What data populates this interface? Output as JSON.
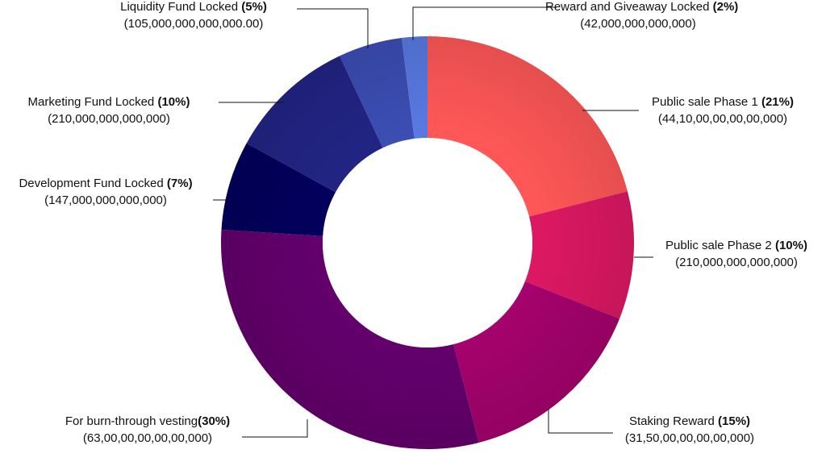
{
  "chart_data": {
    "type": "pie",
    "variant": "donut",
    "title": "",
    "slices": [
      {
        "name": "Public sale Phase 1",
        "percent_label": "(21%)",
        "amount": "(44,10,00,00,00,00,000)",
        "value": 21,
        "color": "#ff5757"
      },
      {
        "name": "Public sale Phase 2",
        "percent_label": "(10%)",
        "amount": "(210,000,000,000,000)",
        "value": 10,
        "color": "#dc1863"
      },
      {
        "name": "Staking Reward",
        "percent_label": "(15%)",
        "amount": "(31,50,00,00,00,00,000)",
        "value": 15,
        "color": "#a4026c"
      },
      {
        "name": "For burn-through vesting",
        "percent_label": "(30%)",
        "amount": "(63,00,00,00,00,00,000)",
        "value": 30,
        "color": "#63006c"
      },
      {
        "name": "Development Fund Locked",
        "percent_label": "(7%)",
        "amount": "(147,000,000,000,000)",
        "value": 7,
        "color": "#02005b"
      },
      {
        "name": "Marketing Fund Locked",
        "percent_label": "(10%)",
        "amount": "(210,000,000,000,000)",
        "value": 10,
        "color": "#222484"
      },
      {
        "name": "Liquidity Fund Locked",
        "percent_label": "(5%)",
        "amount": "(105,000,000,000,000.00)",
        "value": 5,
        "color": "#3c4db3"
      },
      {
        "name": "Reward and Giveaway Locked",
        "percent_label": "(2%)",
        "amount": "(42,000,000,000,000)",
        "value": 2,
        "color": "#5879e2"
      }
    ]
  }
}
